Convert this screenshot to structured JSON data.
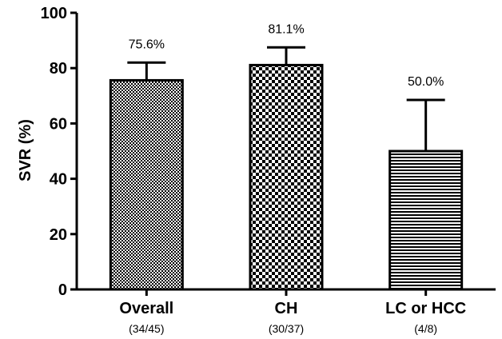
{
  "chart_data": {
    "type": "bar",
    "categories": [
      "Overall",
      "CH",
      "LC or HCC"
    ],
    "sublabels": [
      "(34/45)",
      "(30/37)",
      "(4/8)"
    ],
    "values": [
      75.6,
      81.1,
      50.0
    ],
    "error_upper": [
      82.0,
      87.5,
      68.5
    ],
    "value_labels": [
      "75.6%",
      "81.1%",
      "50.0%"
    ],
    "patterns": [
      "fine-checker",
      "coarse-checker",
      "horizontal-lines"
    ],
    "ylabel": "SVR (%)",
    "xlabel": "",
    "ylim": [
      0,
      100
    ],
    "yticks": [
      "0",
      "20",
      "40",
      "60",
      "80",
      "100"
    ],
    "grid": false
  }
}
